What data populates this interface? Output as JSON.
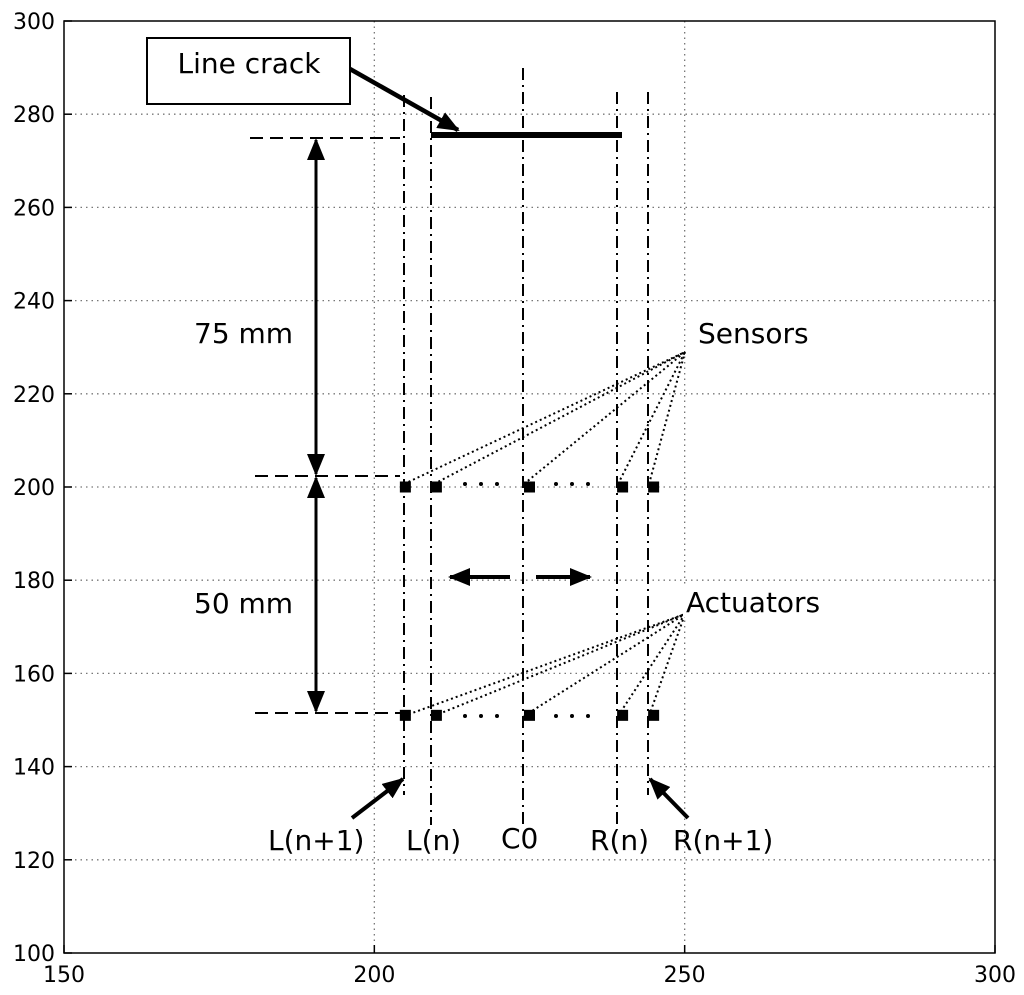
{
  "chart_data": {
    "type": "diagram-plot",
    "xlim": [
      150,
      300
    ],
    "ylim": [
      100,
      300
    ],
    "xticks": [
      150,
      200,
      250,
      300
    ],
    "yticks": [
      100,
      120,
      140,
      160,
      180,
      200,
      220,
      240,
      260,
      280,
      300
    ],
    "grid": true,
    "crack": {
      "x": [
        209,
        240
      ],
      "y": 276
    },
    "sensors": {
      "y": 200,
      "x": [
        205,
        210,
        225,
        240,
        245
      ]
    },
    "actuators": {
      "y": 151,
      "x": [
        205,
        210,
        225,
        240,
        245
      ]
    },
    "scan_lines": [
      {
        "x": 205,
        "label": "L(n+1)"
      },
      {
        "x": 210,
        "label": "L(n)"
      },
      {
        "x": 225,
        "label": "C0"
      },
      {
        "x": 240,
        "label": "R(n)"
      },
      {
        "x": 245,
        "label": "R(n+1)"
      }
    ],
    "dimensions": [
      {
        "label": "75 mm",
        "from": 200,
        "to": 275
      },
      {
        "label": "50 mm",
        "from": 151,
        "to": 200
      }
    ]
  },
  "labels": {
    "line_crack": "Line crack",
    "sensors": "Sensors",
    "actuators": "Actuators",
    "dim_75": "75 mm",
    "dim_50": "50 mm",
    "ln1": "L(n+1)",
    "ln": "L(n)",
    "c0": "C0",
    "rn": "R(n)",
    "rn1": "R(n+1)"
  }
}
